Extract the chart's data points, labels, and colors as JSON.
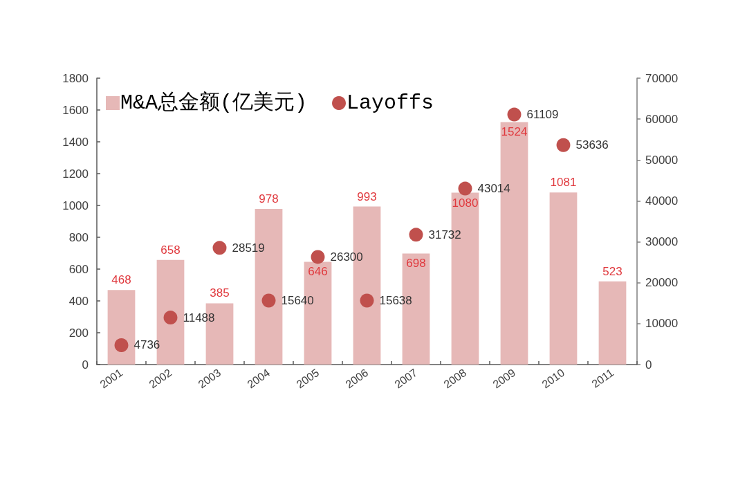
{
  "chart_data": {
    "type": "bar",
    "categories": [
      "2001",
      "2002",
      "2003",
      "2004",
      "2005",
      "2006",
      "2007",
      "2008",
      "2009",
      "2010",
      "2011"
    ],
    "series": [
      {
        "name": "M&A总金额(亿美元)",
        "color": "#e6b8b7",
        "values": [
          468,
          658,
          385,
          978,
          646,
          993,
          698,
          1080,
          1524,
          1081,
          523
        ]
      },
      {
        "name": "Layoffs",
        "type": "scatter",
        "axis": "y2",
        "color": "#c0504d",
        "values": [
          4736,
          11488,
          28519,
          15640,
          26300,
          15638,
          31732,
          43014,
          61109,
          53636,
          null
        ]
      }
    ],
    "ylim": [
      0,
      1800
    ],
    "yticks": [
      0,
      200,
      400,
      600,
      800,
      1000,
      1200,
      1400,
      1600,
      1800
    ],
    "y2lim": [
      0,
      70000
    ],
    "y2ticks": [
      0,
      10000,
      20000,
      30000,
      40000,
      50000,
      60000,
      70000
    ],
    "data_labels": true,
    "legend": "top left",
    "marker": "circle"
  }
}
